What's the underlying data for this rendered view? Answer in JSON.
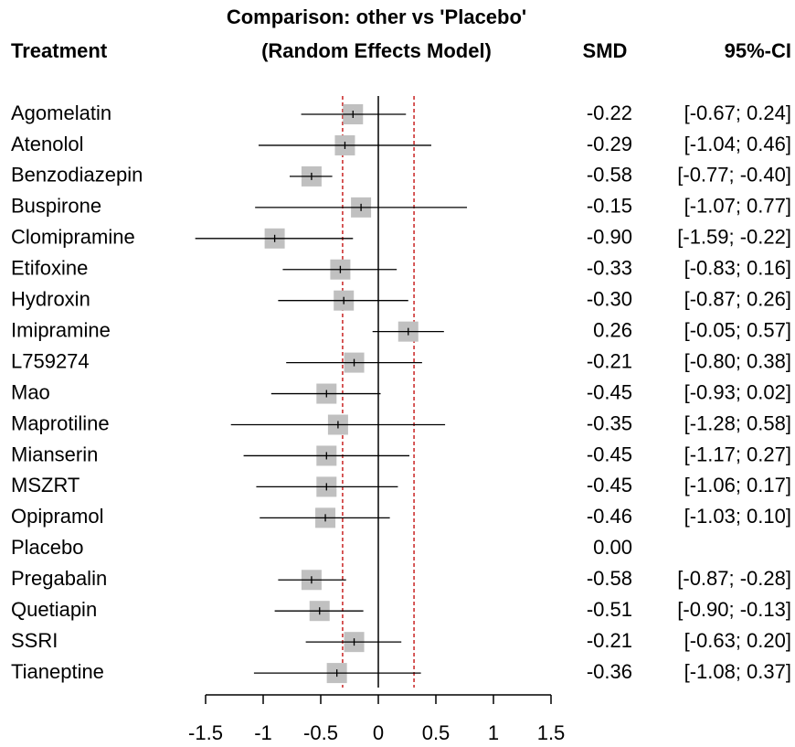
{
  "chart_data": {
    "type": "forest",
    "title": "Comparison: other vs 'Placebo'",
    "subtitle": "(Random Effects Model)",
    "column_headers": {
      "treatment": "Treatment",
      "smd": "SMD",
      "ci": "95%-CI"
    },
    "categories": [
      "Agomelatin",
      "Atenolol",
      "Benzodiazepin",
      "Buspirone",
      "Clomipramine",
      "Etifoxine",
      "Hydroxin",
      "Imipramine",
      "L759274",
      "Mao",
      "Maprotiline",
      "Mianserin",
      "MSZRT",
      "Opipramol",
      "Placebo",
      "Pregabalin",
      "Quetiapin",
      "SSRI",
      "Tianeptine"
    ],
    "values": [
      -0.22,
      -0.29,
      -0.58,
      -0.15,
      -0.9,
      -0.33,
      -0.3,
      0.26,
      -0.21,
      -0.45,
      -0.35,
      -0.45,
      -0.45,
      -0.46,
      0,
      -0.58,
      -0.51,
      -0.21,
      -0.36
    ],
    "value_labels": [
      "-0.22",
      "-0.29",
      "-0.58",
      "-0.15",
      "-0.90",
      "-0.33",
      "-0.30",
      "0.26",
      "-0.21",
      "-0.45",
      "-0.35",
      "-0.45",
      "-0.45",
      "-0.46",
      "0.00",
      "-0.58",
      "-0.51",
      "-0.21",
      "-0.36"
    ],
    "lower": [
      -0.67,
      -1.04,
      -0.77,
      -1.07,
      -1.59,
      -0.83,
      -0.87,
      -0.05,
      -0.8,
      -0.93,
      -1.28,
      -1.17,
      -1.06,
      -1.03,
      null,
      -0.87,
      -0.9,
      -0.63,
      -1.08
    ],
    "upper": [
      0.24,
      0.46,
      -0.4,
      0.77,
      -0.22,
      0.16,
      0.26,
      0.57,
      0.38,
      0.02,
      0.58,
      0.27,
      0.17,
      0.1,
      null,
      -0.28,
      -0.13,
      0.2,
      0.37
    ],
    "ci_labels": [
      "[-0.67; 0.24]",
      "[-1.04; 0.46]",
      "[-0.77; -0.40]",
      "[-1.07; 0.77]",
      "[-1.59; -0.22]",
      "[-0.83; 0.16]",
      "[-0.87; 0.26]",
      "[-0.05; 0.57]",
      "[-0.80; 0.38]",
      "[-0.93; 0.02]",
      "[-1.28; 0.58]",
      "[-1.17; 0.27]",
      "[-1.06; 0.17]",
      "[-1.03; 0.10]",
      null,
      "[-0.87; -0.28]",
      "[-0.90; -0.13]",
      "[-0.63; 0.20]",
      "[-1.08; 0.37]"
    ],
    "xlim": [
      -1.5,
      1.5
    ],
    "xticks": [
      -1.5,
      -1,
      -0.5,
      0,
      0.5,
      1,
      1.5
    ],
    "reference_lines": [
      -0.31,
      0.31
    ],
    "reference_color": "#c00000",
    "square_color": "#c0c0c0"
  }
}
